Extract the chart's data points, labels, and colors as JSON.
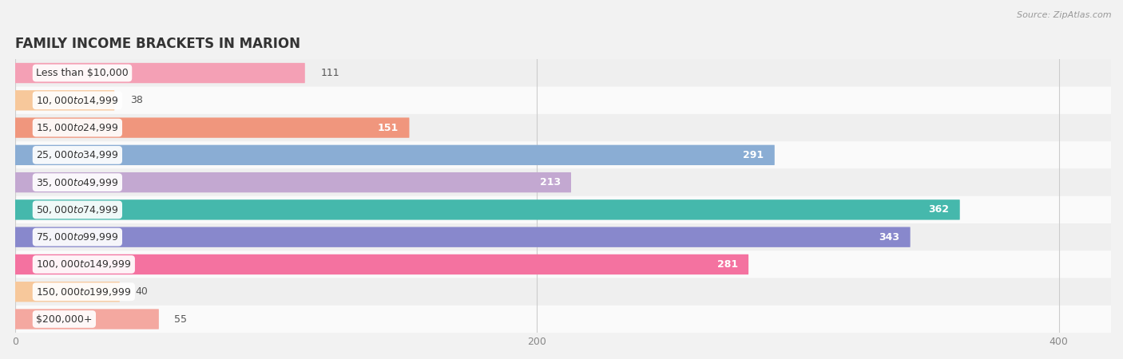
{
  "title": "FAMILY INCOME BRACKETS IN MARION",
  "source": "Source: ZipAtlas.com",
  "categories": [
    "Less than $10,000",
    "$10,000 to $14,999",
    "$15,000 to $24,999",
    "$25,000 to $34,999",
    "$35,000 to $49,999",
    "$50,000 to $74,999",
    "$75,000 to $99,999",
    "$100,000 to $149,999",
    "$150,000 to $199,999",
    "$200,000+"
  ],
  "values": [
    111,
    38,
    151,
    291,
    213,
    362,
    343,
    281,
    40,
    55
  ],
  "bar_colors": [
    "#f4a0b5",
    "#f7c89b",
    "#f0967d",
    "#8aadd4",
    "#c3a8d1",
    "#45b8ac",
    "#8888cc",
    "#f472a0",
    "#f7c89b",
    "#f4a8a0"
  ],
  "xlim": [
    0,
    420
  ],
  "xticks": [
    0,
    200,
    400
  ],
  "background_color": "#f2f2f2",
  "row_bg_even": "#efefef",
  "row_bg_odd": "#fafafa",
  "label_inside_threshold": 150,
  "bar_height": 0.62,
  "value_fontsize": 9,
  "cat_fontsize": 9,
  "title_fontsize": 12,
  "source_fontsize": 8
}
